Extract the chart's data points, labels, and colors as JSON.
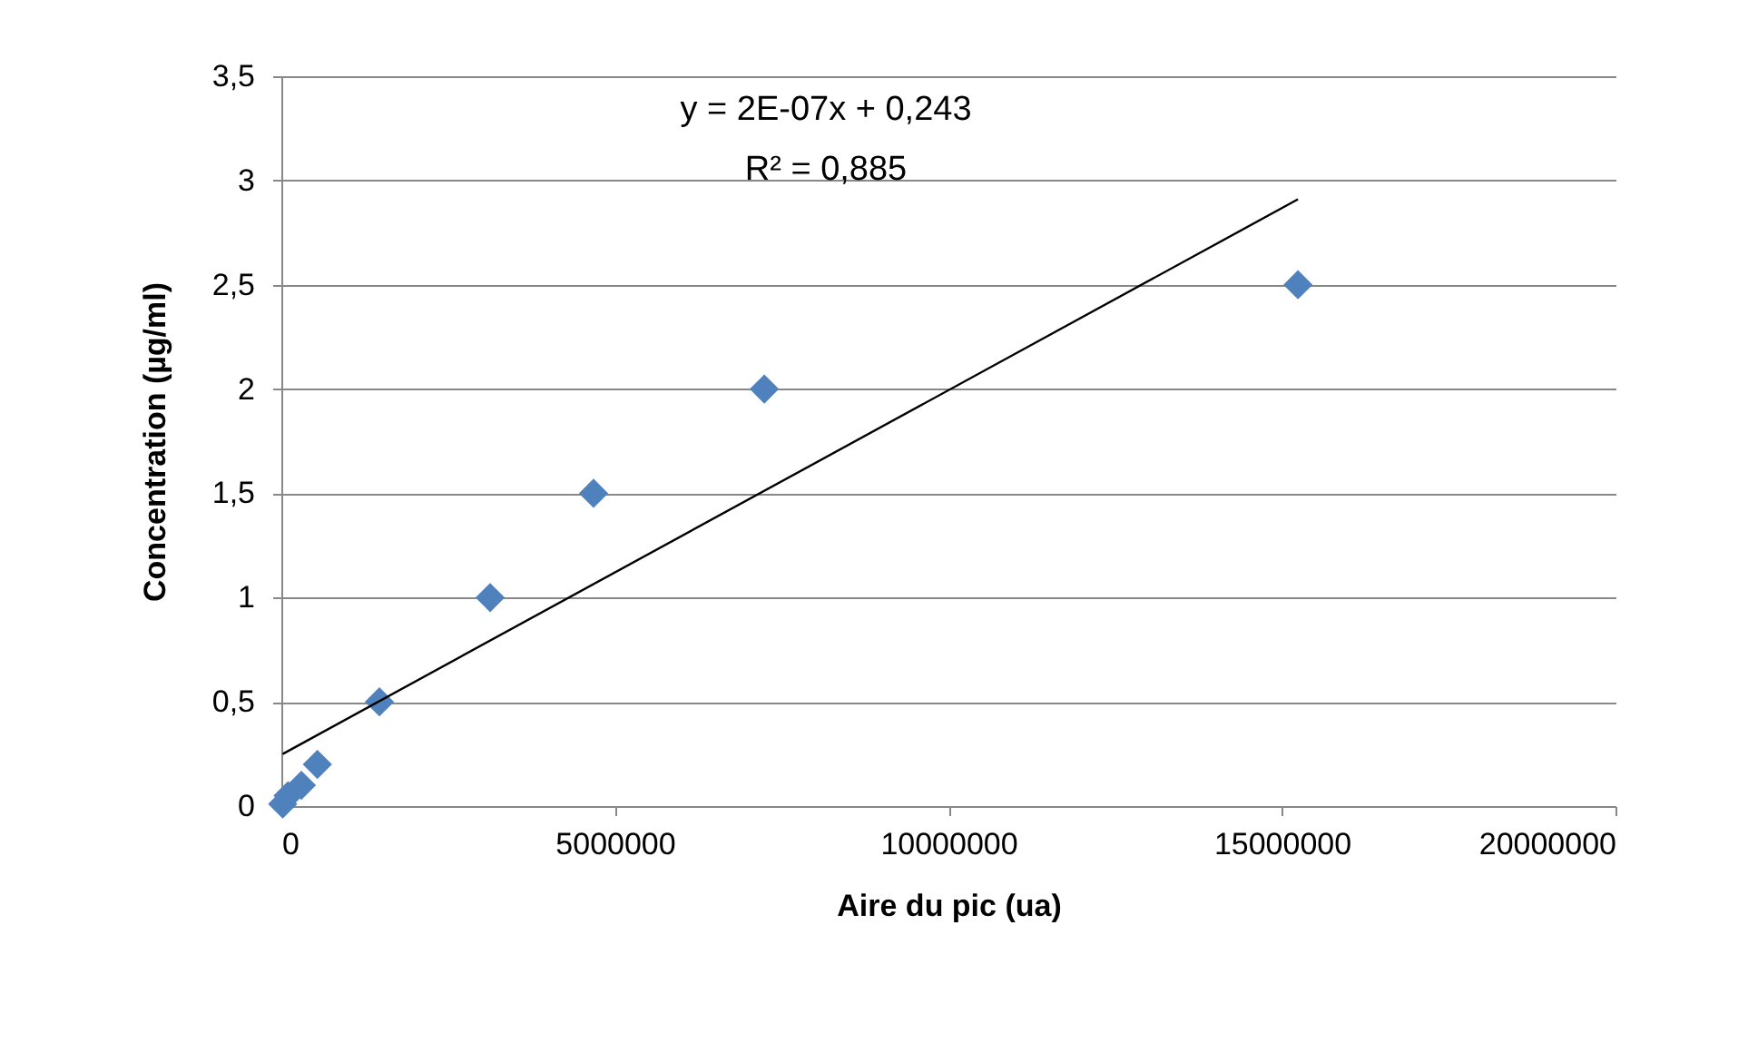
{
  "chart_data": {
    "type": "scatter",
    "xlabel": "Aire du pic (ua)",
    "ylabel": "Concentration (µg/ml)",
    "series": [
      {
        "color": "#4f81bd",
        "marker": "diamond",
        "x": [
          20000,
          100000,
          300000,
          540000,
          1470000,
          3130000,
          4680000,
          7240000,
          15240000
        ],
        "values": [
          0.01,
          0.05,
          0.1,
          0.2,
          0.5,
          1,
          1.5,
          2,
          2.5
        ]
      },
      {
        "type": "line",
        "color": "#000000",
        "line_style": "solid",
        "x": [
          20000,
          15240000
        ],
        "values": [
          0.25,
          2.91
        ]
      }
    ],
    "xlim": [
      0,
      20000000
    ],
    "xticks": [
      0,
      5000000,
      10000000,
      15000000,
      20000000
    ],
    "ylim": [
      0,
      3.5
    ],
    "yticks": [
      0,
      {
        "value": 0.5,
        "label": "0,5"
      },
      1,
      {
        "value": 1.5,
        "label": "1,5"
      },
      2,
      {
        "value": 2.5,
        "label": "2,5"
      },
      3,
      {
        "value": 3.5,
        "label": "3,5"
      }
    ],
    "grid": "y",
    "annotations": [
      "y = 2E-07x + 0,243",
      "R² = 0,885"
    ]
  }
}
